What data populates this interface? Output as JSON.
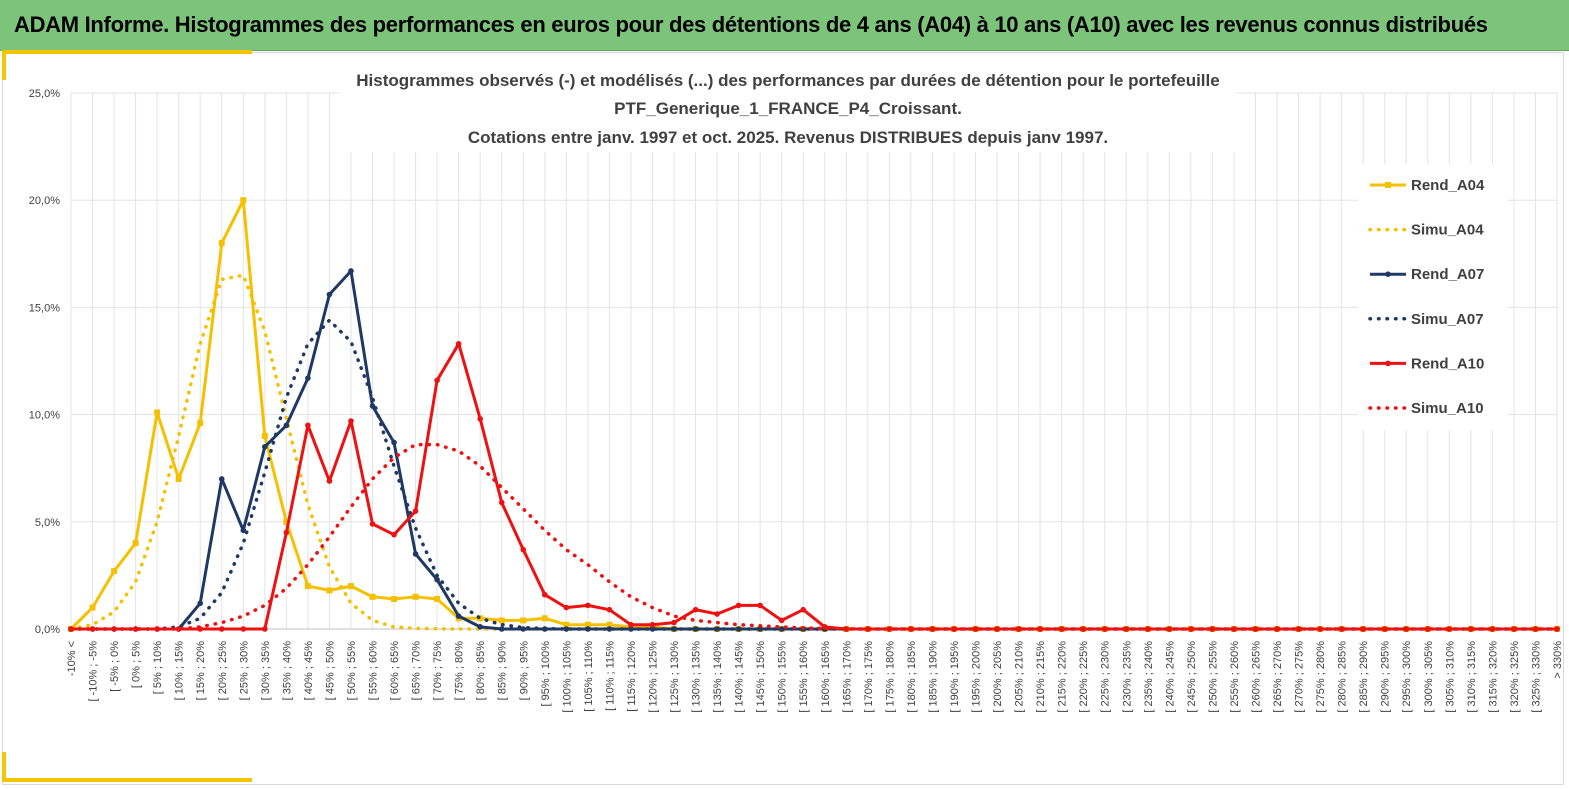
{
  "header": {
    "title": "ADAM Informe. Histogrammes des performances en euros pour des détentions de 4 ans (A04) à 10 ans (A10) avec les revenus connus distribués"
  },
  "chart_data": {
    "type": "line",
    "title": [
      "Histogrammes observés (-) et modélisés (...) des performances par durées de détention pour le portefeuille",
      "PTF_Generique_1_FRANCE_P4_Croissant.",
      "Cotations entre janv. 1997 et oct. 2025. Revenus DISTRIBUES depuis janv 1997."
    ],
    "xlabel": "",
    "ylabel": "",
    "ylim": [
      0,
      25
    ],
    "yticks": [
      "0,0%",
      "5,0%",
      "10,0%",
      "15,0%",
      "20,0%",
      "25,0%"
    ],
    "categories": [
      "-10% <",
      "[ -10% ; -5%",
      "[ -5% ; 0%",
      "[ 0% ; 5%",
      "[ 5% ; 10%",
      "[ 10% ; 15%",
      "[ 15% ; 20%",
      "[ 20% ; 25%",
      "[ 25% ; 30%",
      "[ 30% ; 35%",
      "[ 35% ; 40%",
      "[ 40% ; 45%",
      "[ 45% ; 50%",
      "[ 50% ; 55%",
      "[ 55% ; 60%",
      "[ 60% ; 65%",
      "[ 65% ; 70%",
      "[ 70% ; 75%",
      "[ 75% ; 80%",
      "[ 80% ; 85%",
      "[ 85% ; 90%",
      "[ 90% ; 95%",
      "[ 95% ; 100%",
      "[ 100% ; 105%",
      "[ 105% ; 110%",
      "[ 110% ; 115%",
      "[ 115% ; 120%",
      "[ 120% ; 125%",
      "[ 125% ; 130%",
      "[ 130% ; 135%",
      "[ 135% ; 140%",
      "[ 140% ; 145%",
      "[ 145% ; 150%",
      "[ 150% ; 155%",
      "[ 155% ; 160%",
      "[ 160% ; 165%",
      "[ 165% ; 170%",
      "[ 170% ; 175%",
      "[ 175% ; 180%",
      "[ 180% ; 185%",
      "[ 185% ; 190%",
      "[ 190% ; 195%",
      "[ 195% ; 200%",
      "[ 200% ; 205%",
      "[ 205% ; 210%",
      "[ 210% ; 215%",
      "[ 215% ; 220%",
      "[ 220% ; 225%",
      "[ 225% ; 230%",
      "[ 230% ; 235%",
      "[ 235% ; 240%",
      "[ 240% ; 245%",
      "[ 245% ; 250%",
      "[ 250% ; 255%",
      "[ 255% ; 260%",
      "[ 260% ; 265%",
      "[ 265% ; 270%",
      "[ 270% ; 275%",
      "[ 275% ; 280%",
      "[ 280% ; 285%",
      "[ 285% ; 290%",
      "[ 290% ; 295%",
      "[ 295% ; 300%",
      "[ 300% ; 305%",
      "[ 305% ; 310%",
      "[ 310% ; 315%",
      "[ 315% ; 320%",
      "[ 320% ; 325%",
      "[ 325% ; 330%",
      "> 330%"
    ],
    "series": [
      {
        "name": "Rend_A04",
        "style": "solid",
        "marker": "square",
        "color": "#f5c000",
        "values": [
          0,
          1.0,
          2.7,
          4.0,
          10.1,
          7.0,
          9.6,
          18.0,
          20.0,
          9.0,
          5.0,
          2.0,
          1.8,
          2.0,
          1.5,
          1.4,
          1.5,
          1.4,
          0.5,
          0.5,
          0.4,
          0.4,
          0.5,
          0.2,
          0.2,
          0.2,
          0.1,
          0.1,
          0,
          0,
          0,
          0,
          0,
          0,
          0,
          0,
          0,
          0,
          0,
          0,
          0,
          0,
          0,
          0,
          0,
          0,
          0,
          0,
          0,
          0,
          0,
          0,
          0,
          0,
          0,
          0,
          0,
          0,
          0,
          0,
          0,
          0,
          0,
          0,
          0,
          0,
          0,
          0,
          0,
          0
        ]
      },
      {
        "name": "Simu_A04",
        "style": "dotted",
        "marker": "none",
        "color": "#f5c000",
        "values": [
          0.02,
          0.2,
          0.8,
          2.2,
          5.0,
          9.0,
          13.3,
          16.3,
          16.5,
          13.9,
          9.8,
          5.8,
          2.9,
          1.2,
          0.4,
          0.1,
          0.03,
          0.01,
          0,
          0,
          0,
          0,
          0,
          0,
          0,
          0,
          0,
          0,
          0,
          0,
          0,
          0,
          0,
          0,
          0,
          0,
          0,
          0,
          0,
          0,
          0,
          0,
          0,
          0,
          0,
          0,
          0,
          0,
          0,
          0,
          0,
          0,
          0,
          0,
          0,
          0,
          0,
          0,
          0,
          0,
          0,
          0,
          0,
          0,
          0,
          0,
          0,
          0,
          0,
          0
        ]
      },
      {
        "name": "Rend_A07",
        "style": "solid",
        "marker": "circle",
        "color": "#1f3864",
        "values": [
          0,
          0,
          0,
          0,
          0,
          0,
          1.2,
          7.0,
          4.6,
          8.5,
          9.5,
          11.7,
          15.6,
          16.7,
          10.4,
          8.7,
          3.5,
          2.3,
          0.6,
          0.1,
          0,
          0,
          0,
          0,
          0,
          0,
          0,
          0,
          0,
          0,
          0,
          0,
          0,
          0,
          0,
          0,
          0,
          0,
          0,
          0,
          0,
          0,
          0,
          0,
          0,
          0,
          0,
          0,
          0,
          0,
          0,
          0,
          0,
          0,
          0,
          0,
          0,
          0,
          0,
          0,
          0,
          0,
          0,
          0,
          0,
          0,
          0,
          0,
          0,
          0
        ]
      },
      {
        "name": "Simu_A07",
        "style": "dotted",
        "marker": "none",
        "color": "#1f3864",
        "values": [
          0,
          0,
          0,
          0,
          0,
          0.1,
          0.5,
          1.7,
          4.0,
          7.3,
          10.8,
          13.3,
          14.4,
          13.4,
          10.8,
          7.6,
          4.7,
          2.5,
          1.2,
          0.5,
          0.2,
          0.07,
          0.02,
          0,
          0,
          0,
          0,
          0,
          0,
          0,
          0,
          0,
          0,
          0,
          0,
          0,
          0,
          0,
          0,
          0,
          0,
          0,
          0,
          0,
          0,
          0,
          0,
          0,
          0,
          0,
          0,
          0,
          0,
          0,
          0,
          0,
          0,
          0,
          0,
          0,
          0,
          0,
          0,
          0,
          0,
          0,
          0,
          0,
          0,
          0
        ]
      },
      {
        "name": "Rend_A10",
        "style": "solid",
        "marker": "circle",
        "color": "#ee1111",
        "values": [
          0,
          0,
          0,
          0,
          0,
          0,
          0,
          0,
          0,
          0,
          4.5,
          9.5,
          6.9,
          9.7,
          4.9,
          4.4,
          5.5,
          11.6,
          13.3,
          9.8,
          5.9,
          3.7,
          1.6,
          1.0,
          1.1,
          0.9,
          0.2,
          0.2,
          0.3,
          0.9,
          0.7,
          1.1,
          1.1,
          0.4,
          0.9,
          0.1,
          0,
          0,
          0,
          0,
          0,
          0,
          0,
          0,
          0,
          0,
          0,
          0,
          0,
          0,
          0,
          0,
          0,
          0,
          0,
          0,
          0,
          0,
          0,
          0,
          0,
          0,
          0,
          0,
          0,
          0,
          0,
          0,
          0,
          0
        ]
      },
      {
        "name": "Simu_A10",
        "style": "dotted",
        "marker": "none",
        "color": "#ee1111",
        "values": [
          0,
          0,
          0,
          0,
          0,
          0,
          0.1,
          0.3,
          0.6,
          1.1,
          1.9,
          3.0,
          4.3,
          5.7,
          7.0,
          8.0,
          8.6,
          8.6,
          8.3,
          7.6,
          6.6,
          5.6,
          4.6,
          3.7,
          3.0,
          2.2,
          1.5,
          1.0,
          0.6,
          0.4,
          0.3,
          0.2,
          0.15,
          0.1,
          0.05,
          0.03,
          0.01,
          0,
          0,
          0,
          0,
          0,
          0,
          0,
          0,
          0,
          0,
          0,
          0,
          0,
          0,
          0,
          0,
          0,
          0,
          0,
          0,
          0,
          0,
          0,
          0,
          0,
          0,
          0,
          0,
          0,
          0,
          0,
          0,
          0
        ]
      }
    ],
    "legend": "right",
    "grid": true
  }
}
